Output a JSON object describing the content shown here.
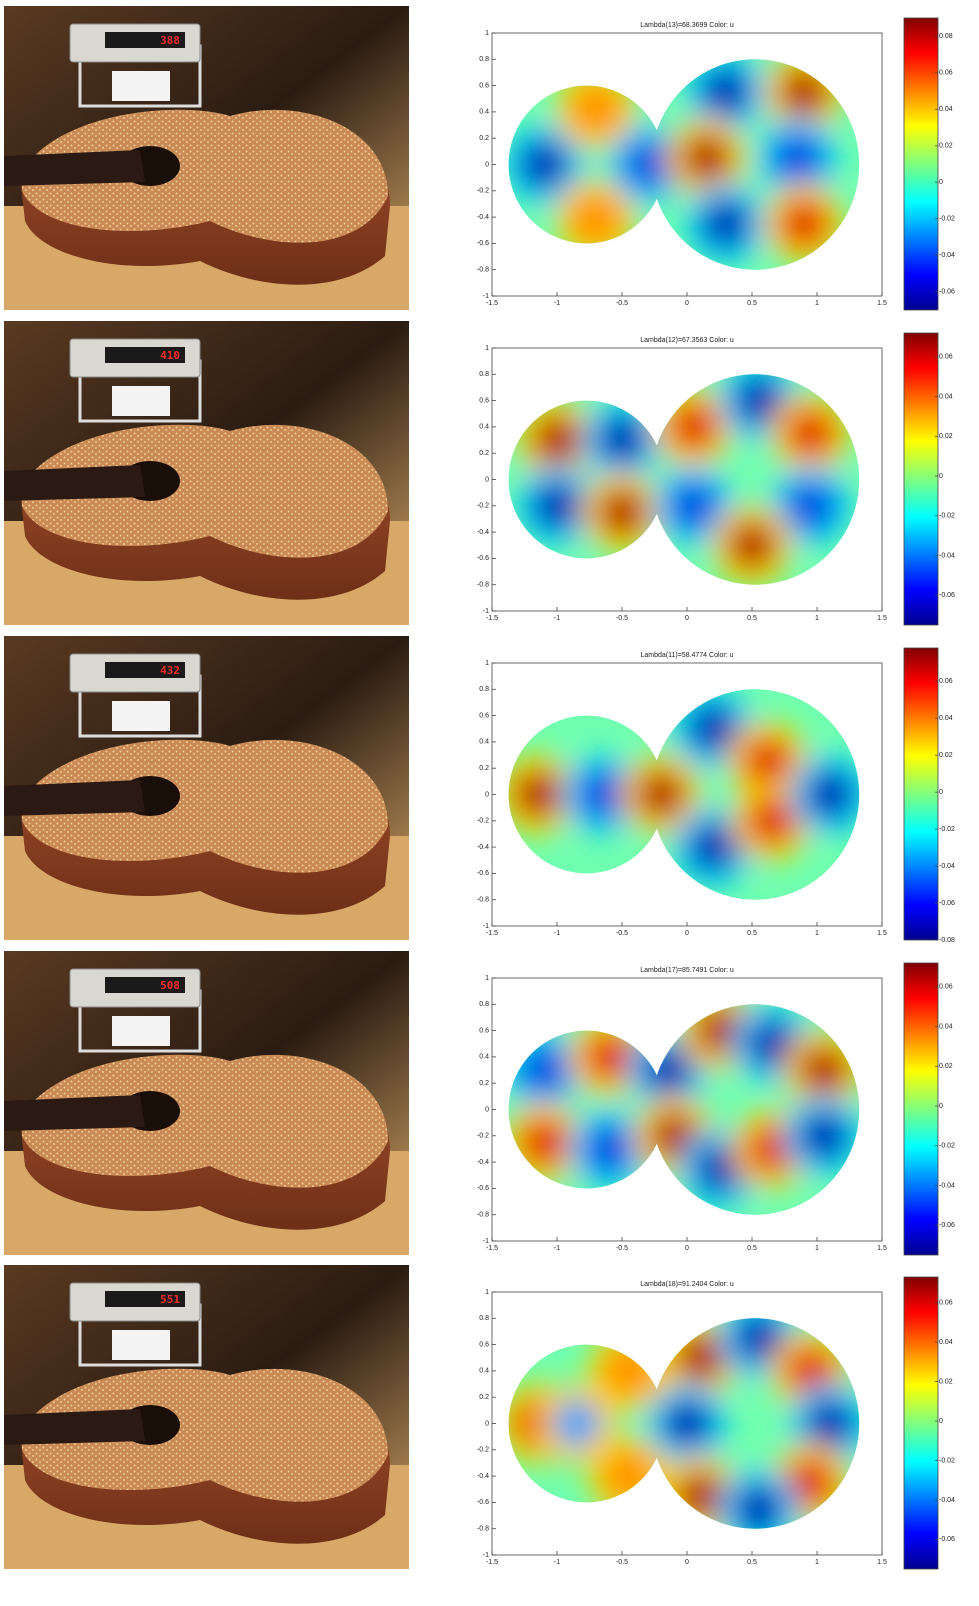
{
  "panels": [
    {
      "display": "388",
      "plot": {
        "title": "Lambda(13)=68.3699   Color: u",
        "xlim": [
          -1.5,
          1.5
        ],
        "ylim": [
          -1,
          1
        ],
        "xticks": [
          -1.5,
          -1,
          -0.5,
          0,
          0.5,
          1,
          1.5
        ],
        "yticks": [
          -1,
          -0.8,
          -0.6,
          -0.4,
          -0.2,
          0,
          0.2,
          0.4,
          0.6,
          0.8,
          1
        ],
        "clim": [
          -0.07,
          0.09
        ],
        "colorbar_ticks": [
          -0.06,
          -0.04,
          -0.02,
          0,
          0.02,
          0.04,
          0.06,
          0.08
        ]
      }
    },
    {
      "display": "410",
      "plot": {
        "title": "Lambda(12)=67.3563   Color: u",
        "xlim": [
          -1.5,
          1.5
        ],
        "ylim": [
          -1,
          1
        ],
        "xticks": [
          -1.5,
          -1,
          -0.5,
          0,
          0.5,
          1,
          1.5
        ],
        "yticks": [
          -1,
          -0.8,
          -0.6,
          -0.4,
          -0.2,
          0,
          0.2,
          0.4,
          0.6,
          0.8,
          1
        ],
        "clim": [
          -0.075,
          0.072
        ],
        "colorbar_ticks": [
          -0.06,
          -0.04,
          -0.02,
          0,
          0.02,
          0.04,
          0.06
        ]
      }
    },
    {
      "display": "432",
      "plot": {
        "title": "Lambda(11)=58.4774   Color: u",
        "xlim": [
          -1.5,
          1.5
        ],
        "ylim": [
          -1,
          1
        ],
        "xticks": [
          -1.5,
          -1,
          -0.5,
          0,
          0.5,
          1,
          1.5
        ],
        "yticks": [
          -1,
          -0.8,
          -0.6,
          -0.4,
          -0.2,
          0,
          0.2,
          0.4,
          0.6,
          0.8,
          1
        ],
        "clim": [
          -0.08,
          0.078
        ],
        "colorbar_ticks": [
          -0.08,
          -0.06,
          -0.04,
          -0.02,
          0,
          0.02,
          0.04,
          0.06
        ]
      }
    },
    {
      "display": "508",
      "plot": {
        "title": "Lambda(17)=85.7491   Color: u",
        "xlim": [
          -1.5,
          1.5
        ],
        "ylim": [
          -1,
          1
        ],
        "xticks": [
          -1.5,
          -1,
          -0.5,
          0,
          0.5,
          1,
          1.5
        ],
        "yticks": [
          -1,
          -0.8,
          -0.6,
          -0.4,
          -0.2,
          0,
          0.2,
          0.4,
          0.6,
          0.8,
          1
        ],
        "clim": [
          -0.075,
          0.072
        ],
        "colorbar_ticks": [
          -0.06,
          -0.04,
          -0.02,
          0,
          0.02,
          0.04,
          0.06
        ]
      }
    },
    {
      "display": "551",
      "plot": {
        "title": "Lambda(18)=91.2404   Color: u",
        "xlim": [
          -1.5,
          1.5
        ],
        "ylim": [
          -1,
          1
        ],
        "xticks": [
          -1.5,
          -1,
          -0.5,
          0,
          0.5,
          1,
          1.5
        ],
        "yticks": [
          -1,
          -0.8,
          -0.6,
          -0.4,
          -0.2,
          0,
          0.2,
          0.4,
          0.6,
          0.8,
          1
        ],
        "clim": [
          -0.075,
          0.073
        ],
        "colorbar_ticks": [
          -0.06,
          -0.04,
          -0.02,
          0,
          0.02,
          0.04,
          0.06
        ]
      }
    }
  ]
}
